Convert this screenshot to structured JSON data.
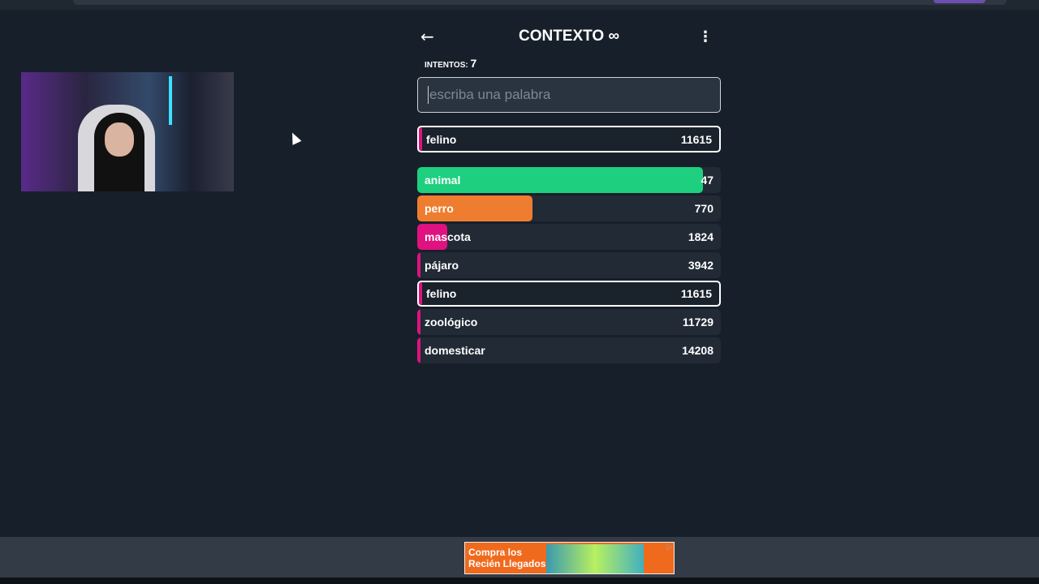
{
  "game": {
    "title": "CONTEXTO",
    "title_icon": "infinity-icon",
    "attempts_label": "INTENTOS:",
    "attempts": "7",
    "input_placeholder": "escriba una palabra",
    "latest": {
      "word": "felino",
      "rank": "11615",
      "color": "#e0127f",
      "fill": 0.01
    },
    "guesses": [
      {
        "word": "animal",
        "rank": "47",
        "color": "#1ecf7f",
        "fill": 0.94
      },
      {
        "word": "perro",
        "rank": "770",
        "color": "#ef7d30",
        "fill": 0.38
      },
      {
        "word": "mascota",
        "rank": "1824",
        "color": "#e0127f",
        "fill": 0.1
      },
      {
        "word": "pájaro",
        "rank": "3942",
        "color": "#e0127f",
        "fill": 0.01
      },
      {
        "word": "felino",
        "rank": "11615",
        "color": "#e0127f",
        "fill": 0.01,
        "highlighted": true
      },
      {
        "word": "zoológico",
        "rank": "11729",
        "color": "#e0127f",
        "fill": 0.01
      },
      {
        "word": "domesticar",
        "rank": "14208",
        "color": "#e0127f",
        "fill": 0.01
      }
    ]
  },
  "ad": {
    "text_line1": "Compra los",
    "text_line2": "Recién Llegados"
  }
}
